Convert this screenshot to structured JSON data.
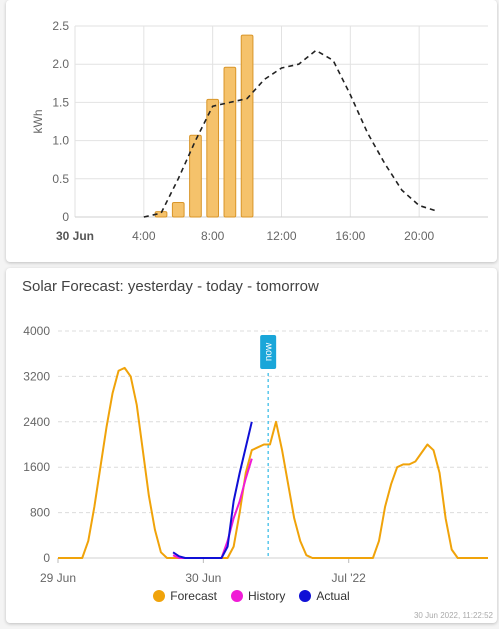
{
  "chart_data": [
    {
      "type": "bar",
      "title": "",
      "ylabel": "kWh",
      "xlabel": "",
      "ylim": [
        0,
        2.5
      ],
      "yticks": [
        "0",
        "0.5",
        "1.0",
        "1.5",
        "2.0",
        "2.5"
      ],
      "xtick_labels": [
        "30 Jun",
        "4:00",
        "8:00",
        "12:00",
        "16:00",
        "20:00"
      ],
      "xtick_hours": [
        0,
        4,
        8,
        12,
        16,
        20
      ],
      "x_range_hours": [
        0,
        24
      ],
      "grid": true,
      "series": [
        {
          "kind": "bar",
          "color": "#f5c26b",
          "x_hours": [
            5,
            6,
            7,
            8,
            9,
            10
          ],
          "values": [
            0.07,
            0.19,
            1.07,
            1.54,
            1.96,
            2.38
          ]
        },
        {
          "kind": "line-dashed",
          "color": "#222222",
          "x_hours": [
            4,
            5,
            6,
            7,
            8,
            9,
            10,
            11,
            12,
            13,
            14,
            15,
            16,
            17,
            18,
            19,
            20,
            21
          ],
          "values": [
            0.0,
            0.05,
            0.5,
            1.0,
            1.45,
            1.5,
            1.55,
            1.8,
            1.95,
            2.0,
            2.18,
            2.05,
            1.6,
            1.1,
            0.7,
            0.35,
            0.15,
            0.08
          ]
        }
      ]
    },
    {
      "type": "line",
      "title": "Solar Forecast: yesterday - today - tomorrow",
      "ylim": [
        0,
        4000
      ],
      "yticks": [
        "0",
        "800",
        "1600",
        "2400",
        "3200",
        "4000"
      ],
      "xtick_labels": [
        "29 Jun",
        "30 Jun",
        "Jul '22"
      ],
      "xtick_hours": [
        0,
        24,
        48
      ],
      "x_range_hours": [
        0,
        71
      ],
      "now_label": "now",
      "now_hour": 34.7,
      "legend": [
        "Forecast",
        "History",
        "Actual"
      ],
      "credit": "30 Jun 2022, 11:22:52",
      "series": [
        {
          "name": "Forecast",
          "color": "#f0a30a",
          "x": [
            0,
            4,
            5,
            6,
            7,
            8,
            9,
            10,
            11,
            12,
            13,
            14,
            15,
            16,
            17,
            18,
            19,
            20,
            21,
            24,
            28,
            29,
            30,
            31,
            32,
            33,
            34,
            35,
            36,
            37,
            38,
            39,
            40,
            41,
            42,
            43,
            45,
            48,
            52,
            53,
            54,
            55,
            56,
            57,
            58,
            59,
            60,
            61,
            62,
            63,
            64,
            65,
            66,
            67,
            68,
            71
          ],
          "y": [
            0,
            0,
            300,
            900,
            1600,
            2300,
            2900,
            3300,
            3350,
            3200,
            2700,
            1900,
            1100,
            500,
            100,
            0,
            0,
            0,
            0,
            0,
            0,
            200,
            800,
            1500,
            1900,
            1950,
            2000,
            2000,
            2400,
            1900,
            1300,
            700,
            300,
            50,
            0,
            0,
            0,
            0,
            0,
            300,
            900,
            1300,
            1600,
            1650,
            1650,
            1700,
            1850,
            2000,
            1900,
            1500,
            700,
            150,
            0,
            0,
            0,
            0
          ]
        },
        {
          "name": "History",
          "color": "#f01bd6",
          "x": [
            19,
            20,
            21,
            24,
            26,
            27,
            28,
            29,
            30,
            31,
            32
          ],
          "y": [
            50,
            0,
            0,
            0,
            0,
            0,
            300,
            700,
            1000,
            1400,
            1750
          ]
        },
        {
          "name": "Actual",
          "color": "#1010d6",
          "x": [
            19,
            20,
            21,
            24,
            26,
            27,
            28,
            29,
            30,
            31,
            32
          ],
          "y": [
            100,
            30,
            0,
            0,
            0,
            0,
            200,
            1000,
            1500,
            1950,
            2400
          ]
        }
      ]
    }
  ]
}
